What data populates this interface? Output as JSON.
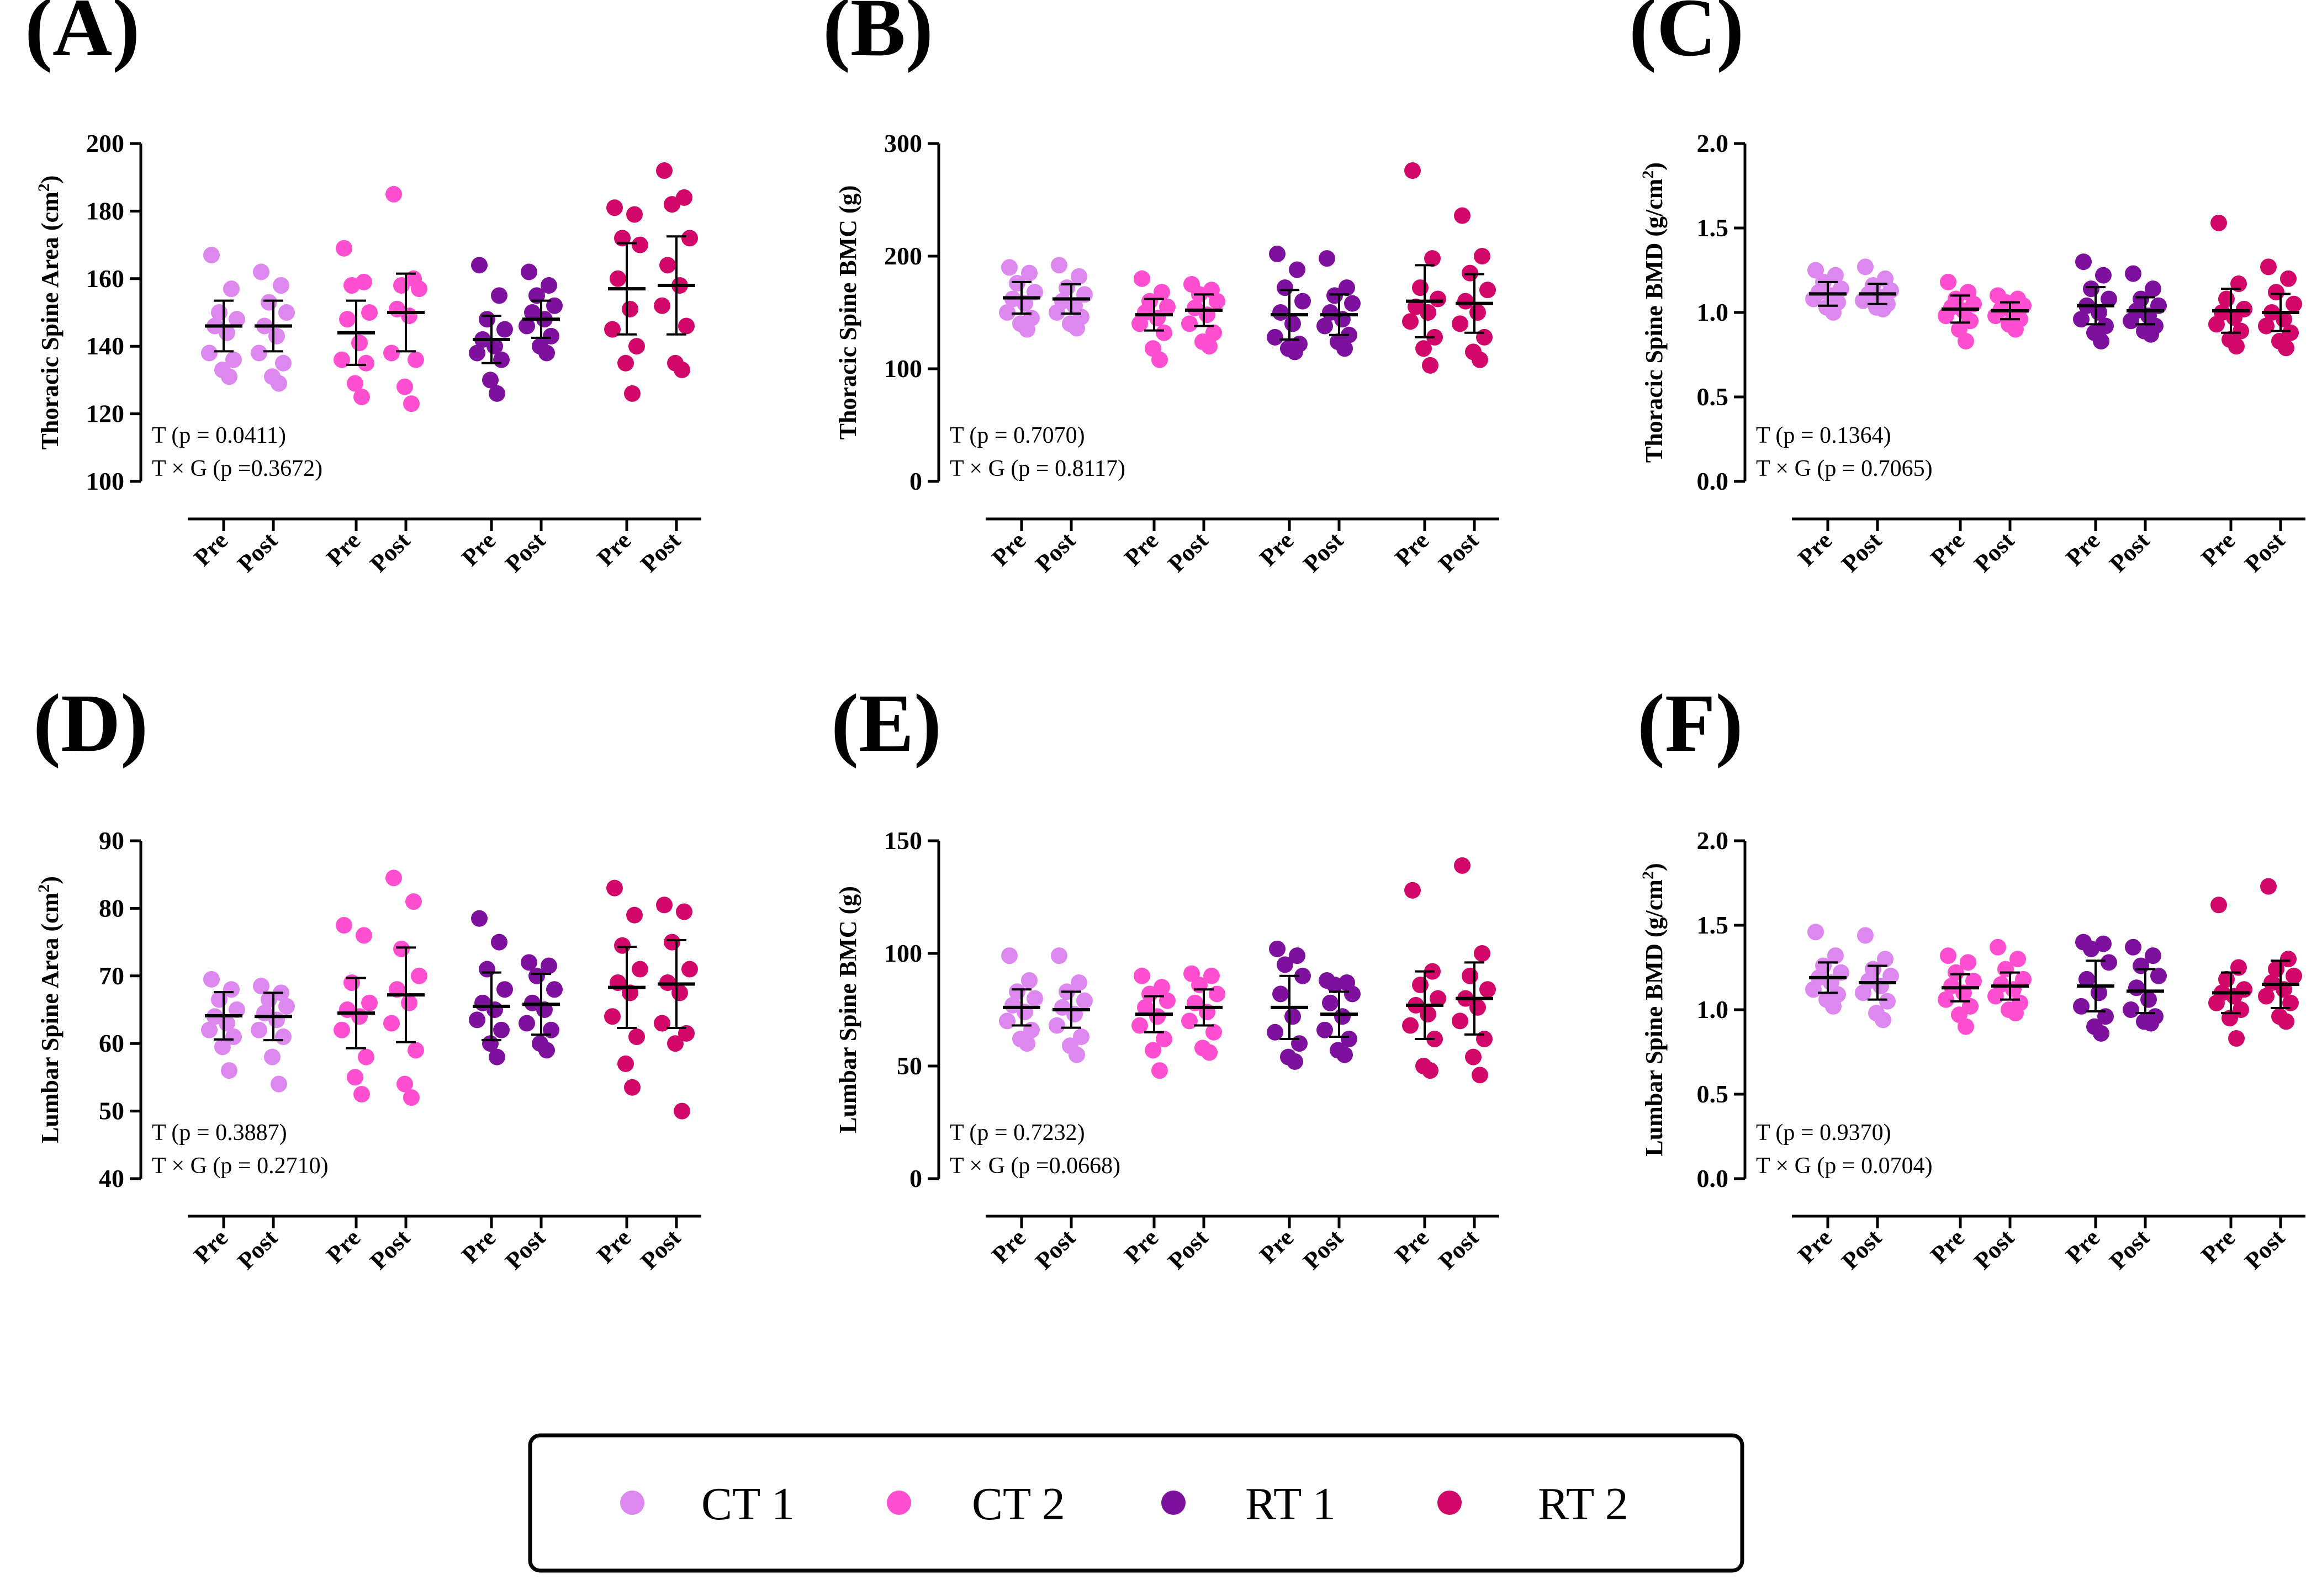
{
  "figure": {
    "group_colors": {
      "CT 1": "#dd88ee",
      "CT 2": "#ff4fd0",
      "RT 1": "#7d109c",
      "RT 2": "#d1086a"
    },
    "x_tick_labels": [
      "Pre",
      "Post",
      "Pre",
      "Post",
      "Pre",
      "Post",
      "Pre",
      "Post"
    ],
    "legend": {
      "items": [
        {
          "label": "CT 1",
          "color": "#dd88ee"
        },
        {
          "label": "CT 2",
          "color": "#ff4fd0"
        },
        {
          "label": "RT 1",
          "color": "#7d109c"
        },
        {
          "label": "RT 2",
          "color": "#d1086a"
        }
      ]
    }
  },
  "chart_data": [
    {
      "type": "scatter",
      "panel": "(A)",
      "ylabel": "Thoracic Spine Area (cm²)",
      "ylim": [
        100,
        200
      ],
      "yticks": [
        100,
        120,
        140,
        160,
        180,
        200
      ],
      "stats": [
        "T (p = 0.0411)",
        "T × G (p =0.3672)"
      ],
      "series": [
        {
          "name": "CT 1",
          "time": "Pre",
          "mean": 146,
          "sd": 7.5,
          "values": [
            167,
            157,
            150,
            148,
            146,
            144,
            138,
            136,
            133,
            131
          ]
        },
        {
          "name": "CT 1",
          "time": "Post",
          "mean": 146,
          "sd": 7.5,
          "values": [
            162,
            158,
            153,
            150,
            146,
            143,
            138,
            135,
            131,
            129
          ]
        },
        {
          "name": "CT 2",
          "time": "Pre",
          "mean": 144,
          "sd": 9.5,
          "values": [
            169,
            159,
            158,
            150,
            148,
            141,
            136,
            135,
            129,
            125
          ]
        },
        {
          "name": "CT 2",
          "time": "Post",
          "mean": 150,
          "sd": 11.5,
          "values": [
            185,
            160,
            158,
            157,
            151,
            149,
            138,
            136,
            128,
            123
          ]
        },
        {
          "name": "RT 1",
          "time": "Pre",
          "mean": 142,
          "sd": 7,
          "values": [
            164,
            155,
            148,
            145,
            142,
            140,
            138,
            136,
            130,
            126
          ]
        },
        {
          "name": "RT 1",
          "time": "Post",
          "mean": 148,
          "sd": 5.5,
          "values": [
            162,
            158,
            155,
            152,
            150,
            148,
            146,
            143,
            140,
            138
          ]
        },
        {
          "name": "RT 2",
          "time": "Pre",
          "mean": 157,
          "sd": 13.5,
          "values": [
            181,
            179,
            172,
            170,
            160,
            151,
            145,
            140,
            135,
            126
          ]
        },
        {
          "name": "RT 2",
          "time": "Post",
          "mean": 158,
          "sd": 14.5,
          "values": [
            192,
            184,
            182,
            172,
            164,
            158,
            152,
            146,
            135,
            133
          ]
        }
      ]
    },
    {
      "type": "scatter",
      "panel": "(B)",
      "ylabel": "Thoracic Spine BMC (g)",
      "ylim": [
        0,
        300
      ],
      "yticks": [
        0,
        100,
        200,
        300
      ],
      "stats": [
        "T (p = 0.7070)",
        "T × G (p = 0.8117)"
      ],
      "series": [
        {
          "name": "CT 1",
          "time": "Pre",
          "mean": 163,
          "sd": 14,
          "values": [
            190,
            185,
            176,
            168,
            162,
            158,
            150,
            145,
            140,
            135
          ]
        },
        {
          "name": "CT 1",
          "time": "Post",
          "mean": 162,
          "sd": 13,
          "values": [
            192,
            182,
            172,
            166,
            160,
            156,
            150,
            146,
            140,
            136
          ]
        },
        {
          "name": "CT 2",
          "time": "Pre",
          "mean": 148,
          "sd": 14,
          "values": [
            180,
            168,
            160,
            155,
            150,
            145,
            140,
            132,
            118,
            108
          ]
        },
        {
          "name": "CT 2",
          "time": "Post",
          "mean": 152,
          "sd": 14,
          "values": [
            175,
            170,
            166,
            160,
            154,
            148,
            140,
            132,
            124,
            120
          ]
        },
        {
          "name": "RT 1",
          "time": "Pre",
          "mean": 148,
          "sd": 22,
          "values": [
            202,
            188,
            172,
            160,
            150,
            140,
            128,
            122,
            118,
            115
          ]
        },
        {
          "name": "RT 1",
          "time": "Post",
          "mean": 148,
          "sd": 18,
          "values": [
            198,
            172,
            165,
            158,
            150,
            144,
            138,
            130,
            124,
            118
          ]
        },
        {
          "name": "RT 2",
          "time": "Pre",
          "mean": 160,
          "sd": 32,
          "values": [
            276,
            198,
            172,
            162,
            155,
            150,
            142,
            128,
            118,
            103
          ]
        },
        {
          "name": "RT 2",
          "time": "Post",
          "mean": 158,
          "sd": 26,
          "values": [
            236,
            200,
            185,
            170,
            160,
            150,
            140,
            128,
            115,
            108
          ]
        }
      ]
    },
    {
      "type": "scatter",
      "panel": "(C)",
      "ylabel": "Thoracic Spine BMD (g/cm²)",
      "ylim": [
        0,
        2.0
      ],
      "yticks": [
        0.0,
        0.5,
        1.0,
        1.5,
        2.0
      ],
      "stats": [
        "T (p = 0.1364)",
        "T × G (p = 0.7065)"
      ],
      "series": [
        {
          "name": "CT 1",
          "time": "Pre",
          "mean": 1.11,
          "sd": 0.07,
          "values": [
            1.25,
            1.22,
            1.18,
            1.14,
            1.12,
            1.1,
            1.08,
            1.06,
            1.03,
            1.0
          ]
        },
        {
          "name": "CT 1",
          "time": "Post",
          "mean": 1.11,
          "sd": 0.06,
          "values": [
            1.27,
            1.2,
            1.16,
            1.13,
            1.11,
            1.09,
            1.07,
            1.05,
            1.03,
            1.02
          ]
        },
        {
          "name": "CT 2",
          "time": "Pre",
          "mean": 1.02,
          "sd": 0.08,
          "values": [
            1.18,
            1.12,
            1.08,
            1.05,
            1.03,
            1.01,
            0.98,
            0.95,
            0.9,
            0.83
          ]
        },
        {
          "name": "CT 2",
          "time": "Post",
          "mean": 1.01,
          "sd": 0.05,
          "values": [
            1.1,
            1.08,
            1.06,
            1.04,
            1.02,
            1.0,
            0.98,
            0.96,
            0.93,
            0.9
          ]
        },
        {
          "name": "RT 1",
          "time": "Pre",
          "mean": 1.04,
          "sd": 0.11,
          "values": [
            1.3,
            1.22,
            1.14,
            1.08,
            1.04,
            1.0,
            0.96,
            0.92,
            0.88,
            0.83
          ]
        },
        {
          "name": "RT 1",
          "time": "Post",
          "mean": 1.01,
          "sd": 0.08,
          "values": [
            1.23,
            1.14,
            1.08,
            1.04,
            1.01,
            0.98,
            0.95,
            0.92,
            0.89,
            0.87
          ]
        },
        {
          "name": "RT 2",
          "time": "Pre",
          "mean": 1.01,
          "sd": 0.13,
          "values": [
            1.53,
            1.17,
            1.08,
            1.02,
            1.0,
            0.97,
            0.93,
            0.89,
            0.84,
            0.8
          ]
        },
        {
          "name": "RT 2",
          "time": "Post",
          "mean": 1.0,
          "sd": 0.11,
          "values": [
            1.27,
            1.2,
            1.12,
            1.05,
            1.0,
            0.96,
            0.92,
            0.88,
            0.83,
            0.79
          ]
        }
      ]
    },
    {
      "type": "scatter",
      "panel": "(D)",
      "ylabel": "Lumbar Spine Area (cm²)",
      "ylim": [
        40,
        90
      ],
      "yticks": [
        40,
        50,
        60,
        70,
        80,
        90
      ],
      "stats": [
        "T (p = 0.3887)",
        "T × G (p = 0.2710)"
      ],
      "series": [
        {
          "name": "CT 1",
          "time": "Pre",
          "mean": 64.1,
          "sd": 3.5,
          "values": [
            69.5,
            68,
            66.5,
            65,
            64,
            63,
            62,
            61,
            59.5,
            56
          ]
        },
        {
          "name": "CT 1",
          "time": "Post",
          "mean": 64,
          "sd": 3.5,
          "values": [
            68.5,
            67.5,
            66.5,
            65.5,
            64.5,
            63.5,
            62,
            61,
            58,
            54
          ]
        },
        {
          "name": "CT 2",
          "time": "Pre",
          "mean": 64.5,
          "sd": 5.2,
          "values": [
            77.5,
            76,
            69,
            66,
            65,
            64,
            62,
            58,
            55,
            52.5
          ]
        },
        {
          "name": "CT 2",
          "time": "Post",
          "mean": 67.2,
          "sd": 7,
          "values": [
            84.5,
            81,
            74,
            70,
            68,
            66,
            63,
            59,
            54,
            52
          ]
        },
        {
          "name": "RT 1",
          "time": "Pre",
          "mean": 65.5,
          "sd": 5,
          "values": [
            78.5,
            75,
            71,
            68,
            66,
            65,
            63.5,
            62,
            60,
            58
          ]
        },
        {
          "name": "RT 1",
          "time": "Post",
          "mean": 65.8,
          "sd": 4.5,
          "values": [
            72,
            71.5,
            70,
            68,
            66,
            65,
            63,
            62,
            60,
            59
          ]
        },
        {
          "name": "RT 2",
          "time": "Pre",
          "mean": 68.3,
          "sd": 6,
          "values": [
            83,
            79,
            74.5,
            71,
            69,
            67.5,
            64,
            61,
            57,
            53.5
          ]
        },
        {
          "name": "RT 2",
          "time": "Post",
          "mean": 68.8,
          "sd": 6.5,
          "values": [
            80.5,
            79.5,
            75,
            71,
            69,
            67.5,
            63,
            61.5,
            60,
            50
          ]
        }
      ]
    },
    {
      "type": "scatter",
      "panel": "(E)",
      "ylabel": "Lumbar Spine BMC (g)",
      "ylim": [
        0,
        150
      ],
      "yticks": [
        0,
        50,
        100,
        150
      ],
      "stats": [
        "T (p = 0.7232)",
        "T × G (p =0.0668)"
      ],
      "series": [
        {
          "name": "CT 1",
          "time": "Pre",
          "mean": 76,
          "sd": 8,
          "values": [
            99,
            88,
            83,
            80,
            77,
            74,
            70,
            66,
            62,
            60
          ]
        },
        {
          "name": "CT 1",
          "time": "Post",
          "mean": 75,
          "sd": 8,
          "values": [
            99,
            87,
            83,
            79,
            76,
            73,
            68,
            63,
            59,
            55
          ]
        },
        {
          "name": "CT 2",
          "time": "Pre",
          "mean": 73,
          "sd": 8,
          "values": [
            90,
            85,
            82,
            79,
            76,
            72,
            68,
            62,
            57,
            48
          ]
        },
        {
          "name": "CT 2",
          "time": "Post",
          "mean": 76,
          "sd": 8,
          "values": [
            91,
            90,
            86,
            82,
            78,
            74,
            70,
            65,
            58,
            56
          ]
        },
        {
          "name": "RT 1",
          "time": "Pre",
          "mean": 76,
          "sd": 14,
          "values": [
            102,
            99,
            95,
            90,
            82,
            72,
            65,
            60,
            54,
            52
          ]
        },
        {
          "name": "RT 1",
          "time": "Post",
          "mean": 73,
          "sd": 10,
          "values": [
            88,
            87,
            86,
            82,
            78,
            72,
            66,
            62,
            57,
            55
          ]
        },
        {
          "name": "RT 2",
          "time": "Pre",
          "mean": 77,
          "sd": 15,
          "values": [
            128,
            92,
            86,
            80,
            77,
            73,
            68,
            62,
            50,
            48
          ]
        },
        {
          "name": "RT 2",
          "time": "Post",
          "mean": 80,
          "sd": 16,
          "values": [
            139,
            100,
            90,
            84,
            80,
            76,
            70,
            62,
            54,
            46
          ]
        }
      ]
    },
    {
      "type": "scatter",
      "panel": "(F)",
      "ylabel": "Lumbar Spine BMD (g/cm²)",
      "ylim": [
        0,
        2.0
      ],
      "yticks": [
        0.0,
        0.5,
        1.0,
        1.5,
        2.0
      ],
      "stats": [
        "T (p = 0.9370)",
        "T × G (p = 0.0704)"
      ],
      "series": [
        {
          "name": "CT 1",
          "time": "Pre",
          "mean": 1.19,
          "sd": 0.09,
          "values": [
            1.46,
            1.32,
            1.26,
            1.22,
            1.19,
            1.16,
            1.12,
            1.09,
            1.06,
            1.02
          ]
        },
        {
          "name": "CT 1",
          "time": "Post",
          "mean": 1.16,
          "sd": 0.1,
          "values": [
            1.44,
            1.3,
            1.24,
            1.2,
            1.17,
            1.14,
            1.1,
            1.05,
            0.98,
            0.94
          ]
        },
        {
          "name": "CT 2",
          "time": "Pre",
          "mean": 1.13,
          "sd": 0.08,
          "values": [
            1.32,
            1.28,
            1.22,
            1.17,
            1.14,
            1.1,
            1.06,
            1.02,
            0.97,
            0.9
          ]
        },
        {
          "name": "CT 2",
          "time": "Post",
          "mean": 1.14,
          "sd": 0.08,
          "values": [
            1.37,
            1.3,
            1.24,
            1.18,
            1.15,
            1.12,
            1.08,
            1.04,
            1.0,
            0.98
          ]
        },
        {
          "name": "RT 1",
          "time": "Pre",
          "mean": 1.14,
          "sd": 0.15,
          "values": [
            1.4,
            1.39,
            1.36,
            1.28,
            1.18,
            1.1,
            1.02,
            0.96,
            0.9,
            0.86
          ]
        },
        {
          "name": "RT 1",
          "time": "Post",
          "mean": 1.11,
          "sd": 0.13,
          "values": [
            1.37,
            1.32,
            1.26,
            1.2,
            1.13,
            1.06,
            1.0,
            0.96,
            0.93,
            0.92
          ]
        },
        {
          "name": "RT 2",
          "time": "Pre",
          "mean": 1.1,
          "sd": 0.12,
          "values": [
            1.62,
            1.25,
            1.18,
            1.12,
            1.1,
            1.08,
            1.04,
            1.0,
            0.95,
            0.83
          ]
        },
        {
          "name": "RT 2",
          "time": "Post",
          "mean": 1.15,
          "sd": 0.14,
          "values": [
            1.73,
            1.3,
            1.24,
            1.2,
            1.16,
            1.12,
            1.08,
            1.04,
            0.96,
            0.93
          ]
        }
      ]
    }
  ]
}
